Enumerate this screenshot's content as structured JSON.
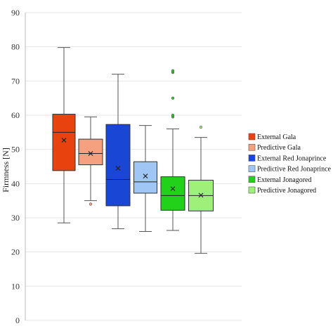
{
  "chart_data": {
    "type": "box",
    "title": "",
    "xlabel": "",
    "ylabel": "Firmness [N]",
    "ylim": [
      0,
      90
    ],
    "yticks": [
      0,
      10,
      20,
      30,
      40,
      50,
      60,
      70,
      80,
      90
    ],
    "grid": true,
    "legend_position": "right",
    "series": [
      {
        "name": "External Gala",
        "color": "#e8420e",
        "min": 28.5,
        "q1": 43.8,
        "median": 55.0,
        "q3": 60.3,
        "max": 79.8,
        "mean": 52.7,
        "outliers": []
      },
      {
        "name": "Predictive Gala",
        "color": "#f5a07f",
        "min": 35.0,
        "q1": 45.5,
        "median": 48.8,
        "q3": 53.0,
        "max": 59.5,
        "mean": 48.8,
        "outliers": [
          34.0
        ]
      },
      {
        "name": "External Red Jonaprince",
        "color": "#1a46d6",
        "min": 26.8,
        "q1": 33.5,
        "median": 41.2,
        "q3": 57.3,
        "max": 72.0,
        "mean": 44.5,
        "outliers": []
      },
      {
        "name": "Predictive Red Jonaprince",
        "color": "#9fc6f5",
        "min": 26.0,
        "q1": 37.2,
        "median": 40.5,
        "q3": 46.4,
        "max": 57.0,
        "mean": 42.2,
        "outliers": []
      },
      {
        "name": "External Jonagored",
        "color": "#22d21a",
        "min": 26.3,
        "q1": 32.2,
        "median": 36.5,
        "q3": 42.0,
        "max": 56.0,
        "mean": 38.5,
        "outliers": [
          59.5,
          60.0,
          65.0,
          72.5,
          73.0
        ]
      },
      {
        "name": "Predictive Jonagored",
        "color": "#9ef07a",
        "min": 19.6,
        "q1": 32.0,
        "median": 36.5,
        "q3": 41.0,
        "max": 53.5,
        "mean": 36.6,
        "outliers": [
          56.5
        ]
      }
    ]
  }
}
